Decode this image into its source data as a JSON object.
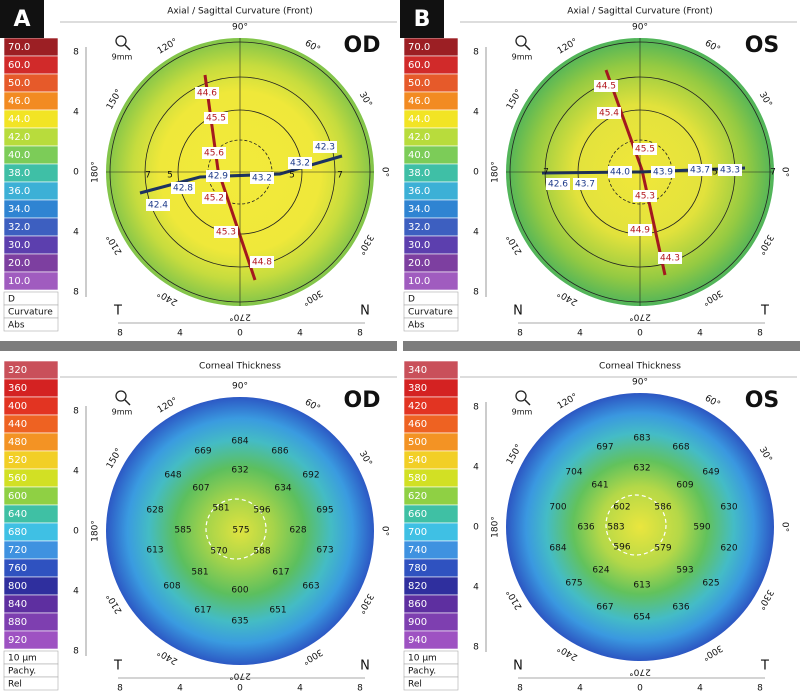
{
  "panels": [
    {
      "label": "A",
      "title": "Axial / Sagittal Curvature (Front)",
      "eye": "OD",
      "zoom": "9mm",
      "scale": [
        "70.0",
        "60.0",
        "50.0",
        "46.0",
        "44.0",
        "42.0",
        "40.0",
        "38.0",
        "36.0",
        "34.0",
        "32.0",
        "30.0",
        "20.0",
        "10.0"
      ],
      "scale_footer": [
        "D",
        "Curvature",
        "Abs"
      ],
      "angles": [
        "90°",
        "120°",
        "150°",
        "180°",
        "210°",
        "240°",
        "270°",
        "300°",
        "330°",
        "0°",
        "30°",
        "60°"
      ],
      "y_ticks": [
        "8",
        "4",
        "0",
        "4",
        "8"
      ],
      "x_ticks": [
        "8",
        "4",
        "0",
        "4",
        "8"
      ],
      "corners": [
        "T",
        "N"
      ],
      "ring_labels": [
        "7",
        "5",
        "5",
        "7"
      ],
      "steep_values": [
        "44.6",
        "45.5",
        "45.6",
        "45.2",
        "45.3",
        "44.8"
      ],
      "flat_values": [
        "42.4",
        "42.8",
        "42.9",
        "43.2",
        "43.2",
        "42.3"
      ]
    },
    {
      "label": "B",
      "title": "Axial / Sagittal Curvature (Front)",
      "eye": "OS",
      "zoom": "9mm",
      "scale": [
        "70.0",
        "60.0",
        "50.0",
        "46.0",
        "44.0",
        "42.0",
        "40.0",
        "38.0",
        "36.0",
        "34.0",
        "32.0",
        "30.0",
        "20.0",
        "10.0"
      ],
      "scale_footer": [
        "D",
        "Curvature",
        "Abs"
      ],
      "angles": [
        "90°",
        "120°",
        "150°",
        "180°",
        "210°",
        "240°",
        "270°",
        "300°",
        "330°",
        "0°",
        "30°",
        "60°"
      ],
      "y_ticks": [
        "8",
        "4",
        "0",
        "4",
        "8"
      ],
      "x_ticks": [
        "8",
        "4",
        "0",
        "4",
        "8"
      ],
      "corners": [
        "N",
        "T"
      ],
      "ring_labels": [
        "7",
        "5",
        "7"
      ],
      "steep_values": [
        "44.5",
        "45.4",
        "45.5",
        "45.3",
        "44.9",
        "44.3"
      ],
      "flat_values": [
        "42.6",
        "43.7",
        "44.0",
        "43.9",
        "43.7",
        "43.3"
      ]
    },
    {
      "title": "Corneal Thickness",
      "eye": "OD",
      "zoom": "9mm",
      "scale": [
        "320",
        "360",
        "400",
        "440",
        "480",
        "520",
        "560",
        "600",
        "640",
        "680",
        "720",
        "760",
        "800",
        "840",
        "880",
        "920"
      ],
      "scale_footer": [
        "10 µm",
        "Pachy.",
        "Rel"
      ],
      "angles": [
        "90°",
        "120°",
        "150°",
        "180°",
        "210°",
        "240°",
        "270°",
        "300°",
        "330°",
        "0°",
        "30°",
        "60°"
      ],
      "y_ticks": [
        "8",
        "4",
        "0",
        "4",
        "8"
      ],
      "x_ticks": [
        "8",
        "4",
        "0",
        "4",
        "8"
      ],
      "corners": [
        "T",
        "N"
      ],
      "values": [
        "684",
        "669",
        "686",
        "648",
        "632",
        "692",
        "607",
        "634",
        "628",
        "581",
        "596",
        "695",
        "585",
        "575",
        "628",
        "613",
        "570",
        "588",
        "673",
        "581",
        "617",
        "608",
        "600",
        "663",
        "617",
        "651",
        "635"
      ]
    },
    {
      "title": "Corneal Thickness",
      "eye": "OS",
      "zoom": "9mm",
      "scale": [
        "340",
        "380",
        "420",
        "460",
        "500",
        "540",
        "580",
        "620",
        "660",
        "700",
        "740",
        "780",
        "820",
        "860",
        "900",
        "940"
      ],
      "scale_footer": [
        "10 µm",
        "Pachy.",
        "Rel"
      ],
      "angles": [
        "90°",
        "120°",
        "150°",
        "180°",
        "210°",
        "240°",
        "270°",
        "300°",
        "330°",
        "0°",
        "30°",
        "60°"
      ],
      "y_ticks": [
        "8",
        "4",
        "0",
        "4",
        "8"
      ],
      "x_ticks": [
        "8",
        "4",
        "0",
        "4",
        "8"
      ],
      "corners": [
        "N",
        "T"
      ],
      "values": [
        "683",
        "697",
        "668",
        "704",
        "632",
        "649",
        "641",
        "609",
        "700",
        "602",
        "586",
        "630",
        "636",
        "583",
        "590",
        "684",
        "596",
        "579",
        "620",
        "624",
        "593",
        "675",
        "613",
        "625",
        "667",
        "636",
        "654"
      ]
    }
  ]
}
